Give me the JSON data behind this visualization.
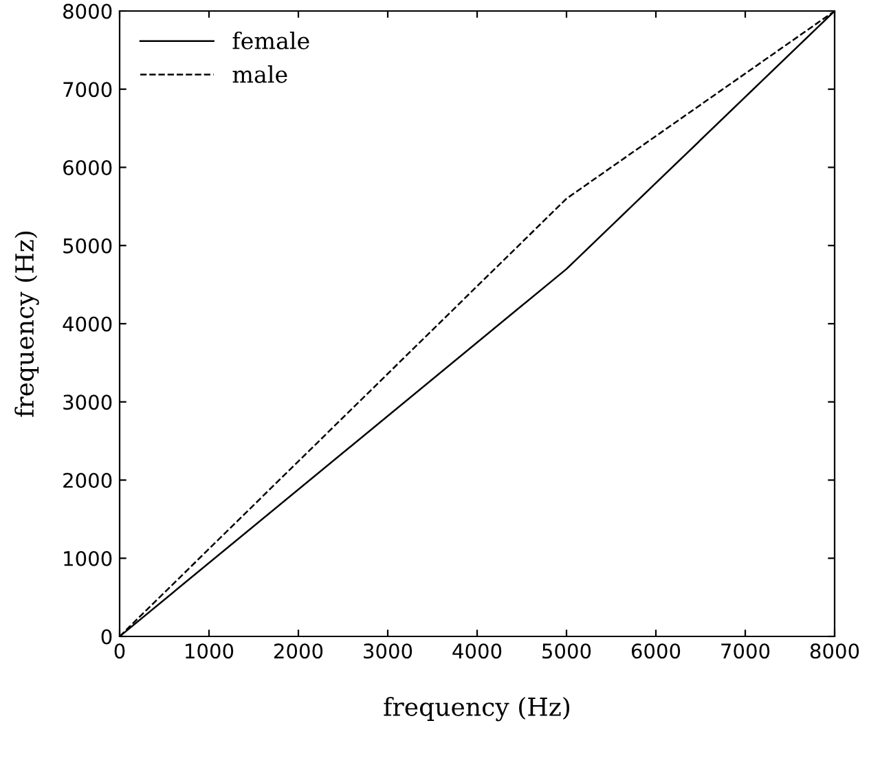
{
  "chart_data": {
    "type": "line",
    "xlabel": "frequency (Hz)",
    "ylabel": "frequency (Hz)",
    "x": [
      0,
      5000,
      8000
    ],
    "series": [
      {
        "name": "female",
        "color": "#000000",
        "values": [
          0,
          4700,
          8000
        ],
        "line_style": "solid"
      },
      {
        "name": "male",
        "color": "#000000",
        "values": [
          0,
          5600,
          8000
        ],
        "line_style": "dashed"
      }
    ],
    "xlim": [
      0,
      8000
    ],
    "ylim": [
      0,
      8000
    ],
    "xticks": [
      0,
      1000,
      2000,
      3000,
      4000,
      5000,
      6000,
      7000,
      8000
    ],
    "yticks": [
      0,
      1000,
      2000,
      3000,
      4000,
      5000,
      6000,
      7000,
      8000
    ],
    "legend": "top left",
    "grid": false,
    "marker": "none"
  }
}
